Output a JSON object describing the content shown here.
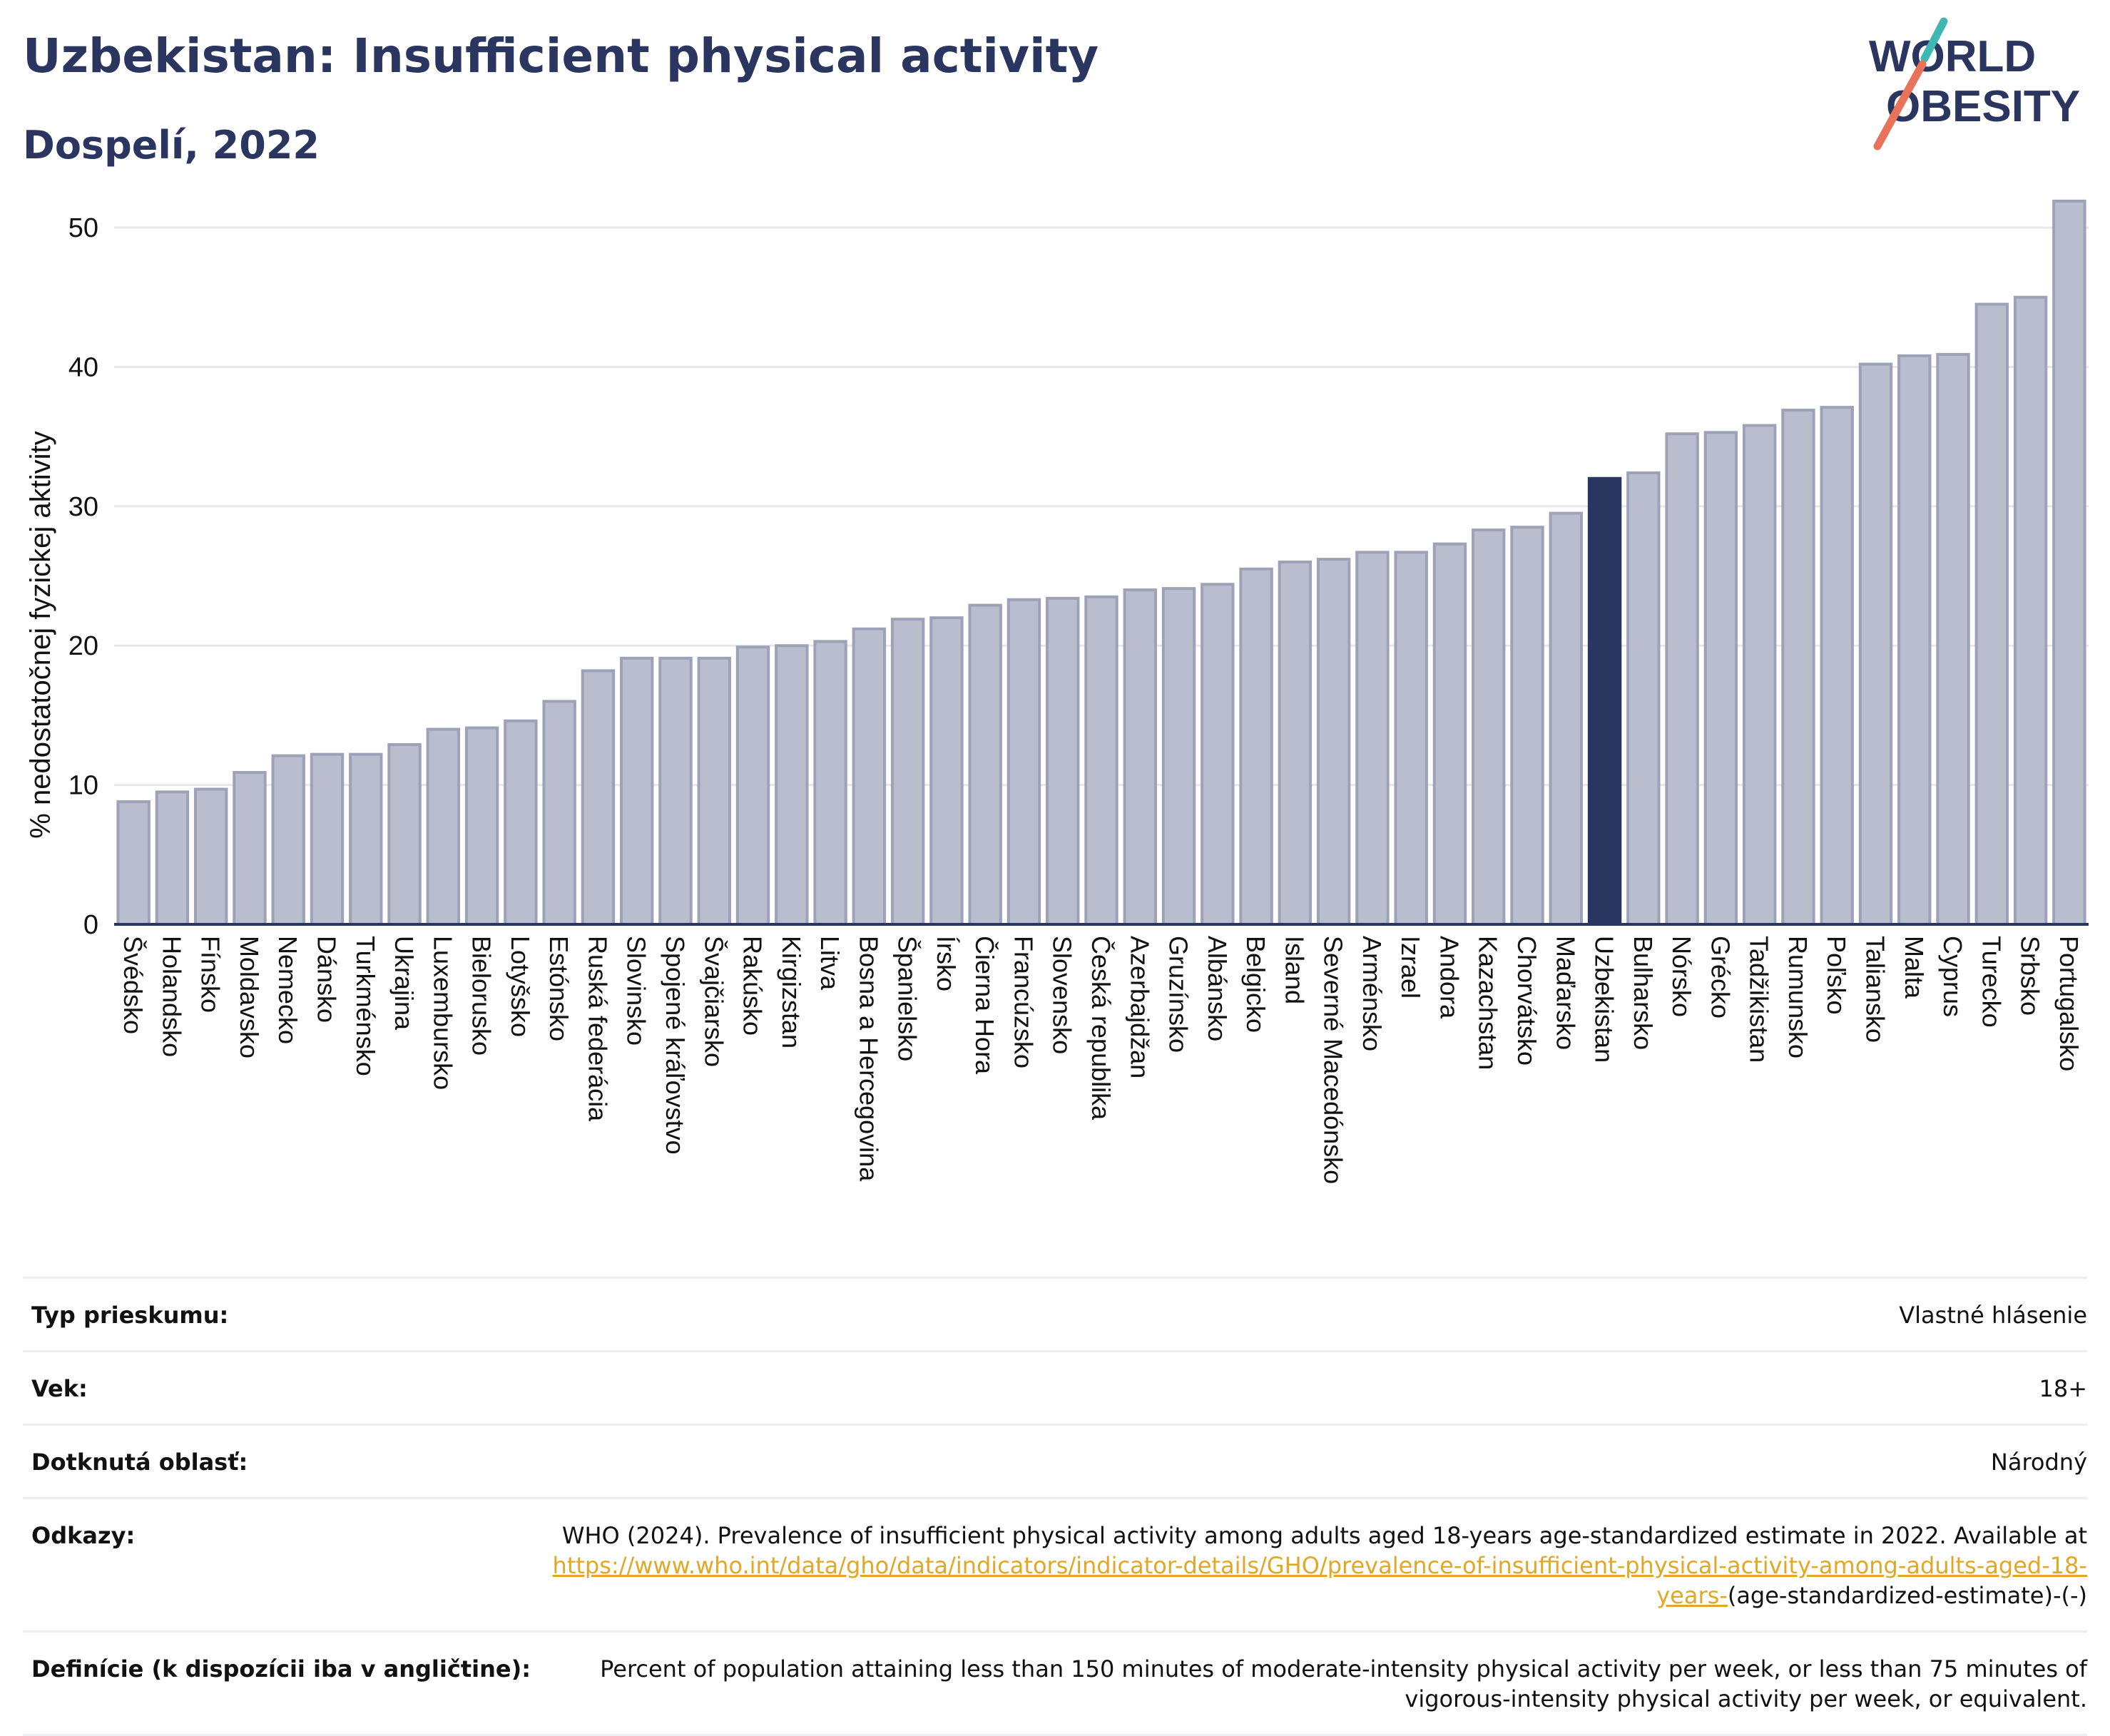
{
  "header": {
    "title": "Uzbekistan: Insufficient physical activity",
    "subtitle": "Dospelí, 2022"
  },
  "logo": {
    "line1": "WORLD",
    "line2": "OBESITY",
    "colors": {
      "text": "#2a3560",
      "slash_teal": "#3fb8b3",
      "slash_coral": "#e8735a"
    }
  },
  "colors": {
    "bar": "#b9bdcd",
    "bar_stroke": "#9da2b8",
    "highlight": "#2a3560",
    "grid": "#e6e8ee",
    "axis_text": "#111111"
  },
  "chart_data": {
    "type": "bar",
    "ylabel": "% nedostatočnej fyzickej aktivity",
    "xlabel": "",
    "ylim": [
      0,
      52
    ],
    "yticks": [
      0,
      10,
      20,
      30,
      40,
      50
    ],
    "grid": true,
    "highlight": "Uzbekistan",
    "categories": [
      "Švédsko",
      "Holandsko",
      "Fínsko",
      "Moldavsko",
      "Nemecko",
      "Dánsko",
      "Turkménsko",
      "Ukrajina",
      "Luxembursko",
      "Bielorusko",
      "Lotyšsko",
      "Estónsko",
      "Ruská federácia",
      "Slovinsko",
      "Spojené kráľovstvo",
      "Švajčiarsko",
      "Rakúsko",
      "Kirgizstan",
      "Litva",
      "Bosna a Hercegovina",
      "Španielsko",
      "Írsko",
      "Čierna Hora",
      "Francúzsko",
      "Slovensko",
      "Česká republika",
      "Azerbajdžan",
      "Gruzínsko",
      "Albánsko",
      "Belgicko",
      "Island",
      "Severné Macedónsko",
      "Arménsko",
      "Izrael",
      "Andora",
      "Kazachstan",
      "Chorvátsko",
      "Maďarsko",
      "Uzbekistan",
      "Bulharsko",
      "Nórsko",
      "Grécko",
      "Tadžikistan",
      "Rumunsko",
      "Poľsko",
      "Taliansko",
      "Malta",
      "Cyprus",
      "Turecko",
      "Srbsko",
      "Portugalsko"
    ],
    "values": [
      8.8,
      9.5,
      9.7,
      10.9,
      12.1,
      12.2,
      12.2,
      12.9,
      14.0,
      14.1,
      14.6,
      16.0,
      18.2,
      19.1,
      19.1,
      19.1,
      19.9,
      20.0,
      20.3,
      21.2,
      21.9,
      22.0,
      22.9,
      23.3,
      23.4,
      23.5,
      24.0,
      24.1,
      24.4,
      25.5,
      26.0,
      26.2,
      26.7,
      26.7,
      27.3,
      28.3,
      28.5,
      29.5,
      32.0,
      32.4,
      35.2,
      35.3,
      35.8,
      36.9,
      37.1,
      40.2,
      40.8,
      40.9,
      44.5,
      45.0,
      51.9
    ]
  },
  "info": {
    "survey_label": "Typ prieskumu:",
    "survey_value": "Vlastné hlásenie",
    "age_label": "Vek:",
    "age_value": "18+",
    "area_label": "Dotknutá oblasť:",
    "area_value": "Národný",
    "refs_label": "Odkazy:",
    "refs_text": "WHO (2024). Prevalence of insufficient physical activity among adults aged 18-years age-standardized estimate in 2022. Available at",
    "refs_link": "https://www.who.int/data/gho/data/indicators/indicator-details/GHO/prevalence-of-insufficient-physical-activity-among-adults-aged-18-years-",
    "refs_tail": "(age-standardized-estimate)-(-)",
    "def_label": "Definície (k dispozícii iba v angličtine):",
    "def_value": "Percent of population attaining less than 150 minutes of moderate-intensity physical activity per week, or less than 75 minutes of vigorous-intensity physical activity per week, or equivalent."
  }
}
